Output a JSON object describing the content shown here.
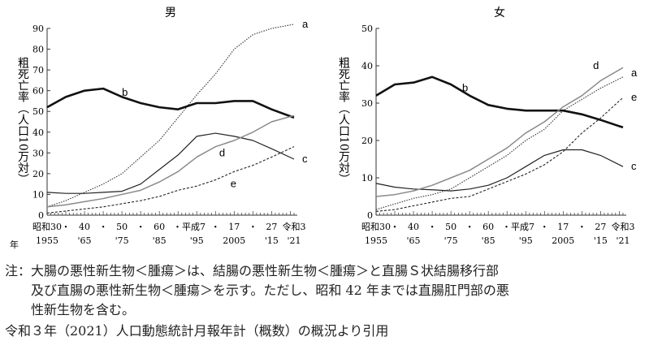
{
  "chart_data": [
    {
      "type": "line",
      "title": "男",
      "ylabel": "粗死亡率（人口10万対）",
      "xlabel": "年",
      "ylim": [
        0,
        90
      ],
      "yticks": [
        0,
        10,
        20,
        30,
        40,
        50,
        60,
        70,
        80,
        90
      ],
      "x": [
        1955,
        1960,
        1965,
        1970,
        1975,
        1980,
        1985,
        1990,
        1995,
        2000,
        2005,
        2010,
        2015,
        2021
      ],
      "xtick_labels_era": [
        "昭和30",
        "・",
        "40",
        "・",
        "50",
        "・",
        "60",
        "・平成7",
        "・",
        "17",
        "・",
        "27",
        "令和3"
      ],
      "xtick_labels_year": [
        "1955",
        "'65",
        "'75",
        "'85",
        "'95",
        "2005",
        "'15",
        "'21"
      ],
      "series": [
        {
          "name": "a",
          "style": "dotted",
          "values": [
            4,
            7,
            11,
            15,
            20,
            28,
            36,
            47,
            58,
            68,
            80,
            87,
            90,
            92
          ]
        },
        {
          "name": "b",
          "style": "thick",
          "values": [
            52,
            57,
            60,
            61,
            57,
            54,
            52,
            51,
            54,
            54,
            55,
            55,
            51,
            47
          ]
        },
        {
          "name": "c",
          "style": "thin-black",
          "values": [
            11,
            10.5,
            10.5,
            11,
            11.5,
            15,
            22,
            29,
            38,
            39.5,
            38,
            36,
            32,
            27
          ]
        },
        {
          "name": "d",
          "style": "gray",
          "values": [
            4,
            5,
            6.5,
            8,
            10,
            12,
            16,
            21,
            28,
            33,
            36,
            40,
            45,
            48
          ]
        },
        {
          "name": "e",
          "style": "dashed",
          "values": [
            1,
            2,
            3,
            4,
            5.5,
            7,
            9,
            12,
            14,
            17,
            21,
            24,
            28,
            33
          ]
        }
      ]
    },
    {
      "type": "line",
      "title": "女",
      "ylabel": "粗死亡率（人口10万対）",
      "ylim": [
        0,
        50
      ],
      "yticks": [
        0,
        10,
        20,
        30,
        40,
        50
      ],
      "x": [
        1955,
        1960,
        1965,
        1970,
        1975,
        1980,
        1985,
        1990,
        1995,
        2000,
        2005,
        2010,
        2015,
        2021
      ],
      "xtick_labels_era": [
        "昭和30",
        "・",
        "40",
        "・",
        "50",
        "・",
        "60",
        "・平成7",
        "・",
        "17",
        "・",
        "27",
        "令和3"
      ],
      "xtick_labels_year": [
        "1955",
        "'65",
        "'75",
        "'85",
        "'95",
        "2005",
        "'15",
        "'21"
      ],
      "series": [
        {
          "name": "a",
          "style": "dotted",
          "values": [
            1.5,
            3,
            4.5,
            5.5,
            7,
            10,
            13,
            16,
            20,
            23,
            28,
            31,
            34,
            37
          ]
        },
        {
          "name": "b",
          "style": "thick",
          "values": [
            32,
            35,
            35.5,
            37,
            35,
            32,
            29.5,
            28.5,
            28,
            28,
            28,
            27,
            25.5,
            23.5
          ]
        },
        {
          "name": "c",
          "style": "thin-black",
          "values": [
            8.5,
            7.5,
            7,
            6.8,
            6.5,
            7,
            8,
            10,
            13,
            16,
            17.5,
            17.5,
            16,
            13
          ]
        },
        {
          "name": "d",
          "style": "gray",
          "values": [
            5,
            5.5,
            6.5,
            8,
            10,
            12,
            15,
            18,
            22,
            25,
            29,
            32,
            36,
            39.5
          ]
        },
        {
          "name": "e",
          "style": "dashed",
          "values": [
            1,
            1.5,
            2.5,
            3.5,
            4.5,
            5,
            7,
            9,
            11,
            13.5,
            17,
            22,
            26,
            31.5
          ]
        }
      ]
    }
  ],
  "notes": {
    "line1": "注：大腸の悪性新生物＜腫瘍＞は、結腸の悪性新生物＜腫瘍＞と直腸Ｓ状結腸移行部",
    "line2": "及び直腸の悪性新生物＜腫瘍＞を示す。ただし、昭和 42 年までは直腸肛門部の悪",
    "line3": "性新生物を含む。",
    "source": "令和３年（2021）人口動態統計月報年計（概数）の概況より引用"
  }
}
